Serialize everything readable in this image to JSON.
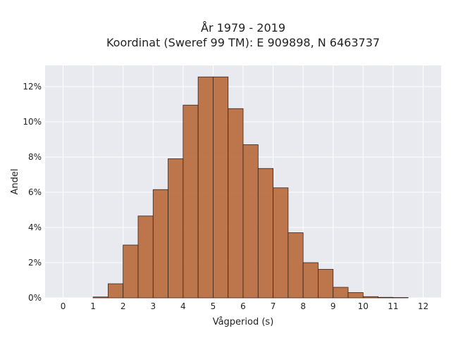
{
  "chart_data": {
    "type": "bar",
    "title_lines": [
      "År 1979 - 2019",
      "Koordinat (Sweref 99 TM): E 909898, N 6463737"
    ],
    "xlabel": "Vågperiod (s)",
    "ylabel": "Andel",
    "xlim": [
      -0.6,
      12.6
    ],
    "ylim": [
      0,
      13.2
    ],
    "x_ticks": [
      0,
      1,
      2,
      3,
      4,
      5,
      6,
      7,
      8,
      9,
      10,
      11,
      12
    ],
    "y_ticks": [
      0,
      2,
      4,
      6,
      8,
      10,
      12
    ],
    "y_tick_labels": [
      "0%",
      "2%",
      "4%",
      "6%",
      "8%",
      "10%",
      "12%"
    ],
    "grid": true,
    "bin_width": 0.5,
    "bins": [
      {
        "start": 1.0,
        "value": 0.05
      },
      {
        "start": 1.5,
        "value": 0.8
      },
      {
        "start": 2.0,
        "value": 3.0
      },
      {
        "start": 2.5,
        "value": 4.65
      },
      {
        "start": 3.0,
        "value": 6.15
      },
      {
        "start": 3.5,
        "value": 7.9
      },
      {
        "start": 4.0,
        "value": 10.95
      },
      {
        "start": 4.5,
        "value": 12.55
      },
      {
        "start": 5.0,
        "value": 12.55
      },
      {
        "start": 5.5,
        "value": 10.75
      },
      {
        "start": 6.0,
        "value": 8.7
      },
      {
        "start": 6.5,
        "value": 7.35
      },
      {
        "start": 7.0,
        "value": 6.25
      },
      {
        "start": 7.5,
        "value": 3.7
      },
      {
        "start": 8.0,
        "value": 2.0
      },
      {
        "start": 8.5,
        "value": 1.62
      },
      {
        "start": 9.0,
        "value": 0.6
      },
      {
        "start": 9.5,
        "value": 0.3
      },
      {
        "start": 10.0,
        "value": 0.07
      },
      {
        "start": 10.5,
        "value": 0.03
      },
      {
        "start": 11.0,
        "value": 0.02
      }
    ],
    "colors": {
      "bar_fill": "#b86a3e",
      "bar_stroke": "#3a2418",
      "plot_background": "#e9e9f0",
      "grid": "#ffffff"
    }
  }
}
